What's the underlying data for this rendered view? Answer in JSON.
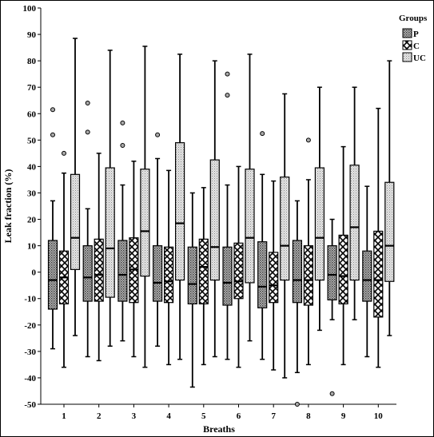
{
  "chart_data": {
    "type": "boxplot",
    "xlabel": "Breaths",
    "ylabel": "Leak fraction (%)",
    "ylim": [
      -50,
      100
    ],
    "yticks": [
      100,
      90,
      80,
      70,
      60,
      50,
      40,
      30,
      20,
      10,
      0,
      -10,
      -20,
      -30,
      -40,
      -50
    ],
    "categories": [
      "1",
      "2",
      "3",
      "4",
      "5",
      "6",
      "7",
      "8",
      "9",
      "10"
    ],
    "legend": {
      "title": "Groups",
      "placement": "top-right"
    },
    "grid": false,
    "series": [
      {
        "name": "P",
        "pattern": "dense-dots",
        "boxes": [
          {
            "min": -29,
            "q1": -14,
            "median": -3,
            "q3": 12,
            "max": 27,
            "outliers": [
              52,
              61.5
            ]
          },
          {
            "min": -32,
            "q1": -11,
            "median": -2,
            "q3": 10,
            "max": 24,
            "outliers": [
              53,
              64
            ]
          },
          {
            "min": -26,
            "q1": -11,
            "median": -1,
            "q3": 12,
            "max": 33,
            "outliers": [
              48,
              56.5
            ]
          },
          {
            "min": -28,
            "q1": -11,
            "median": -4,
            "q3": 10,
            "max": 43,
            "outliers": [
              52
            ]
          },
          {
            "min": -43.5,
            "q1": -12,
            "median": -4.5,
            "q3": 9.5,
            "max": 30,
            "outliers": []
          },
          {
            "min": -33,
            "q1": -12.5,
            "median": -4,
            "q3": 9.5,
            "max": 33,
            "outliers": [
              67,
              75
            ]
          },
          {
            "min": -33,
            "q1": -13.5,
            "median": -5.5,
            "q3": 11.5,
            "max": 37,
            "outliers": [
              52.5
            ]
          },
          {
            "min": -38,
            "q1": -11.5,
            "median": -3,
            "q3": 12,
            "max": 27,
            "outliers": [
              -50
            ]
          },
          {
            "min": -18,
            "q1": -10.5,
            "median": -1,
            "q3": 10,
            "max": 20,
            "outliers": [
              -46
            ]
          },
          {
            "min": -32,
            "q1": -11,
            "median": -3,
            "q3": 8,
            "max": 32.5,
            "outliers": []
          }
        ]
      },
      {
        "name": "C",
        "pattern": "checker",
        "boxes": [
          {
            "min": -36,
            "q1": -12,
            "median": -2,
            "q3": 8,
            "max": 37.5,
            "outliers": [
              45
            ]
          },
          {
            "min": -33.5,
            "q1": -11,
            "median": -1,
            "q3": 12.5,
            "max": 45,
            "outliers": []
          },
          {
            "min": -32,
            "q1": -11.5,
            "median": 1,
            "q3": 13,
            "max": 42,
            "outliers": []
          },
          {
            "min": -35,
            "q1": -11.5,
            "median": -3.5,
            "q3": 9.5,
            "max": 38.5,
            "outliers": []
          },
          {
            "min": -35,
            "q1": -12,
            "median": 2,
            "q3": 12.5,
            "max": 32,
            "outliers": []
          },
          {
            "min": -36,
            "q1": -10,
            "median": -3.5,
            "q3": 11,
            "max": 40,
            "outliers": []
          },
          {
            "min": -37,
            "q1": -11.5,
            "median": -5,
            "q3": 7.5,
            "max": 34.5,
            "outliers": []
          },
          {
            "min": -35,
            "q1": -12.5,
            "median": -3,
            "q3": 10,
            "max": 35,
            "outliers": [
              50
            ]
          },
          {
            "min": -35,
            "q1": -12,
            "median": -1.5,
            "q3": 14,
            "max": 47.5,
            "outliers": []
          },
          {
            "min": -36,
            "q1": -17,
            "median": -3,
            "q3": 15.5,
            "max": 62,
            "outliers": []
          }
        ]
      },
      {
        "name": "UC",
        "pattern": "light-dots",
        "boxes": [
          {
            "min": -24,
            "q1": 1,
            "median": 13,
            "q3": 37,
            "max": 88.5,
            "outliers": []
          },
          {
            "min": -28,
            "q1": -9.5,
            "median": 9,
            "q3": 39.5,
            "max": 84,
            "outliers": []
          },
          {
            "min": -36,
            "q1": -1.5,
            "median": 15.5,
            "q3": 39,
            "max": 85.5,
            "outliers": []
          },
          {
            "min": -33,
            "q1": -3,
            "median": 18.5,
            "q3": 49,
            "max": 82.5,
            "outliers": []
          },
          {
            "min": -32,
            "q1": -3,
            "median": 9.5,
            "q3": 42.5,
            "max": 80,
            "outliers": []
          },
          {
            "min": -26,
            "q1": -4,
            "median": 13,
            "q3": 39,
            "max": 82.5,
            "outliers": []
          },
          {
            "min": -40,
            "q1": -3,
            "median": 10,
            "q3": 36,
            "max": 67.5,
            "outliers": []
          },
          {
            "min": -22,
            "q1": -3,
            "median": 13,
            "q3": 39.5,
            "max": 70,
            "outliers": []
          },
          {
            "min": -18,
            "q1": -3,
            "median": 17,
            "q3": 40.5,
            "max": 70,
            "outliers": []
          },
          {
            "min": -24,
            "q1": -3.5,
            "median": 10,
            "q3": 34,
            "max": 80,
            "outliers": []
          }
        ]
      }
    ]
  },
  "colors": {
    "P": "#9e9e9e",
    "C": "#ededed",
    "UC": "#d2d2d2",
    "outlier_fill": "#aaaaaa"
  }
}
